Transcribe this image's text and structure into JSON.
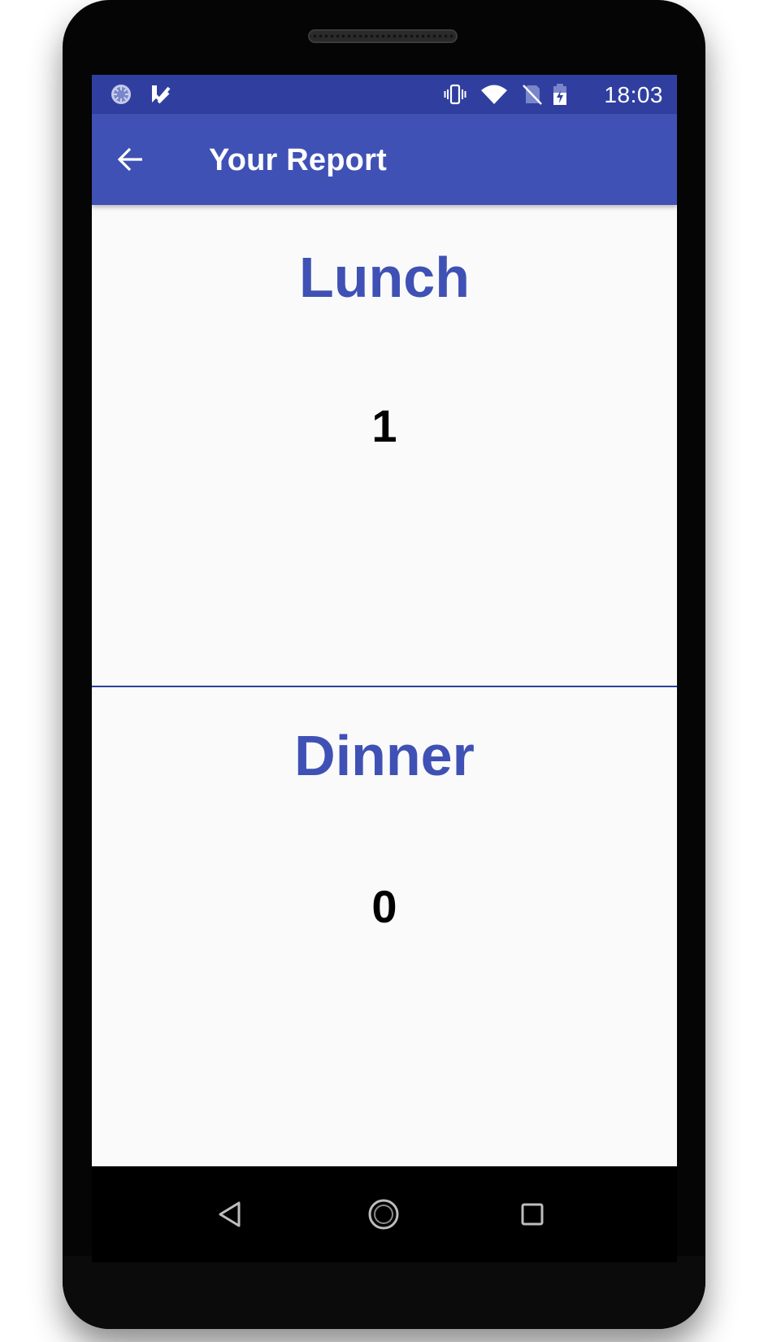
{
  "status_bar": {
    "time": "18:03",
    "icons": [
      "sync-icon",
      "task-check-icon",
      "vibrate-icon",
      "wifi-icon",
      "no-sim-icon",
      "battery-charging-icon"
    ],
    "color": "#303f9f"
  },
  "app_bar": {
    "title": "Your Report",
    "back_icon": "arrow-back-icon",
    "color": "#3f51b5"
  },
  "report": {
    "sections": [
      {
        "label": "Lunch",
        "count": "1"
      },
      {
        "label": "Dinner",
        "count": "0"
      }
    ],
    "accent_color": "#3f51b5"
  },
  "nav_bar": {
    "buttons": [
      "back-triangle-icon",
      "home-circle-icon",
      "recents-square-icon"
    ]
  }
}
